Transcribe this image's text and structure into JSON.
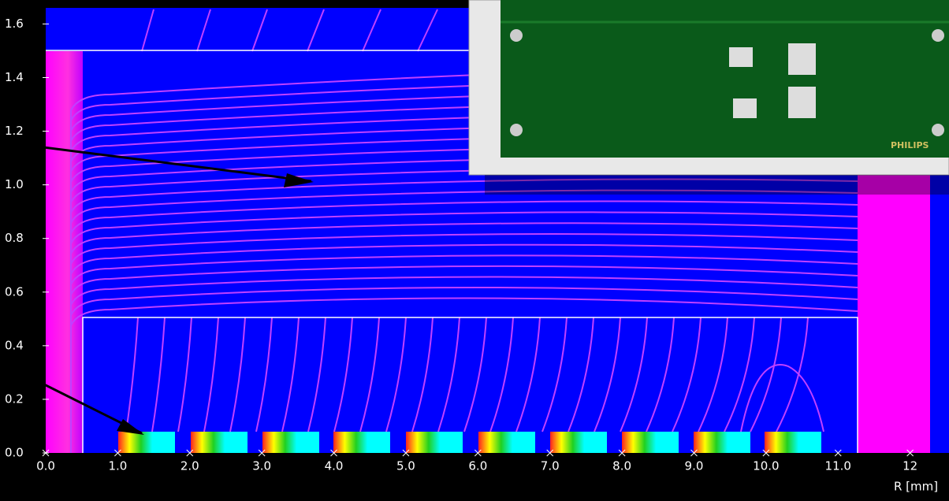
{
  "chart_data": {
    "type": "contour",
    "x_label": "R [mm]",
    "xlim": [
      0,
      12.54
    ],
    "ylim": [
      0,
      1.66
    ],
    "xticks": [
      {
        "value": 0,
        "label": "0.0"
      },
      {
        "value": 1,
        "label": "1.0"
      },
      {
        "value": 2,
        "label": "2.0"
      },
      {
        "value": 3,
        "label": "3.0"
      },
      {
        "value": 4,
        "label": "4.0"
      },
      {
        "value": 5,
        "label": "5.0"
      },
      {
        "value": 6,
        "label": "6.0"
      },
      {
        "value": 7,
        "label": "7.0"
      },
      {
        "value": 8,
        "label": "8.0"
      },
      {
        "value": 9,
        "label": "9.0"
      },
      {
        "value": 10,
        "label": "10.0"
      },
      {
        "value": 11,
        "label": "11.0"
      },
      12
    ],
    "yticks": [
      {
        "value": 0,
        "label": "0.0"
      },
      0.2,
      0.4,
      0.6,
      0.8,
      {
        "value": 1,
        "label": "1.0"
      },
      1.2,
      1.4,
      1.6
    ],
    "inset_text": "PHILIPS"
  }
}
